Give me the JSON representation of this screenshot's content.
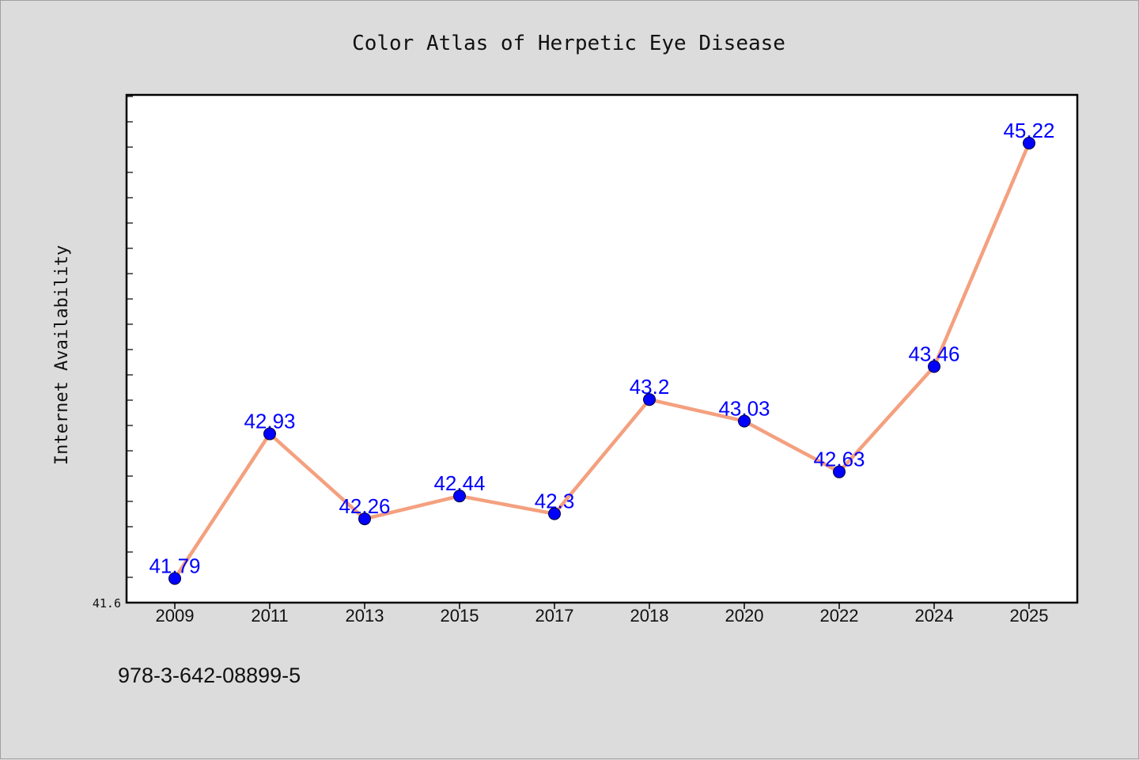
{
  "footer": "978-3-642-08899-5",
  "colors": {
    "background": "#dcdcdc",
    "plot_background": "#ffffff",
    "line": "#f4a07f",
    "marker": "#0000ff",
    "data_label": "#0000ff",
    "axis": "#000000"
  },
  "chart_data": {
    "type": "line",
    "title": "Color Atlas of Herpetic Eye Disease",
    "xlabel": "",
    "ylabel": "Internet Availability",
    "categories": [
      "2009",
      "2011",
      "2013",
      "2015",
      "2017",
      "2018",
      "2020",
      "2022",
      "2024",
      "2025"
    ],
    "series": [
      {
        "values": [
          41.79,
          42.93,
          42.26,
          42.44,
          42.3,
          43.2,
          43.03,
          42.63,
          43.46,
          45.22
        ],
        "labels": [
          "41.79",
          "42.93",
          "42.26",
          "42.44",
          "42.3",
          "43.2",
          "43.03",
          "42.63",
          "43.46",
          "45.22"
        ]
      }
    ],
    "ylim": [
      41.6,
      45.6
    ],
    "y_min_label": "41.6",
    "grid": false,
    "legend": "none"
  }
}
